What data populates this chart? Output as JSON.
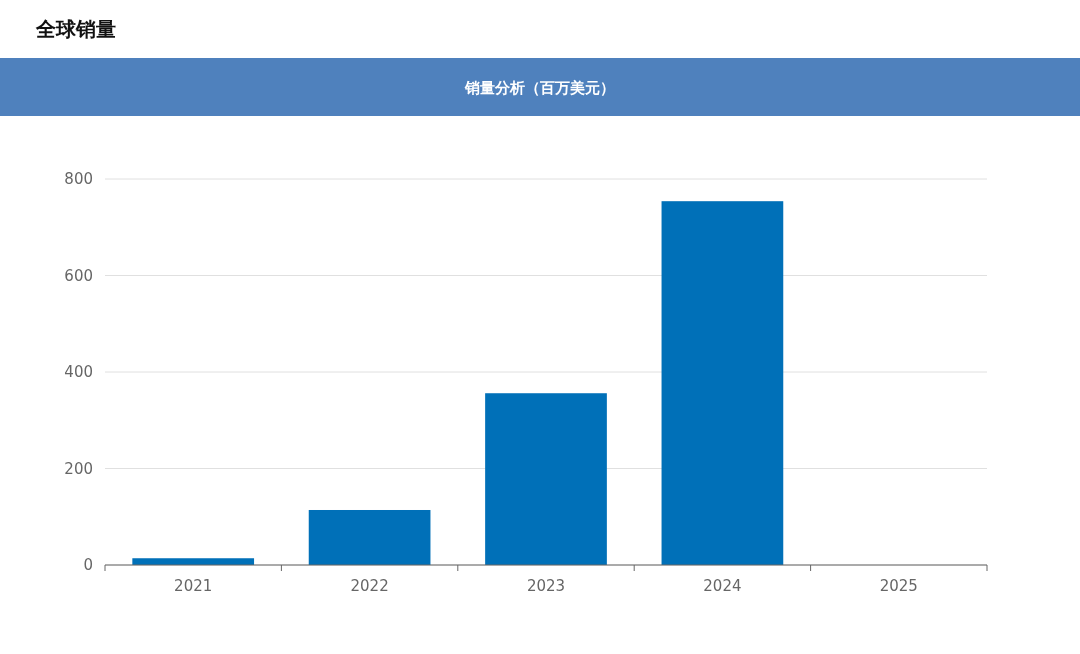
{
  "chart_data": {
    "type": "bar",
    "title": "全球销量",
    "subtitle": "销量分析（百万美元）",
    "categories": [
      "2021",
      "2022",
      "2023",
      "2024",
      "2025"
    ],
    "series": [
      {
        "color": "#0070b8",
        "values": [
          14,
          114,
          356,
          754,
          null
        ]
      }
    ],
    "ylim": [
      0,
      800
    ],
    "yticks": [
      0,
      200,
      400,
      600,
      800
    ],
    "grid": "y"
  }
}
